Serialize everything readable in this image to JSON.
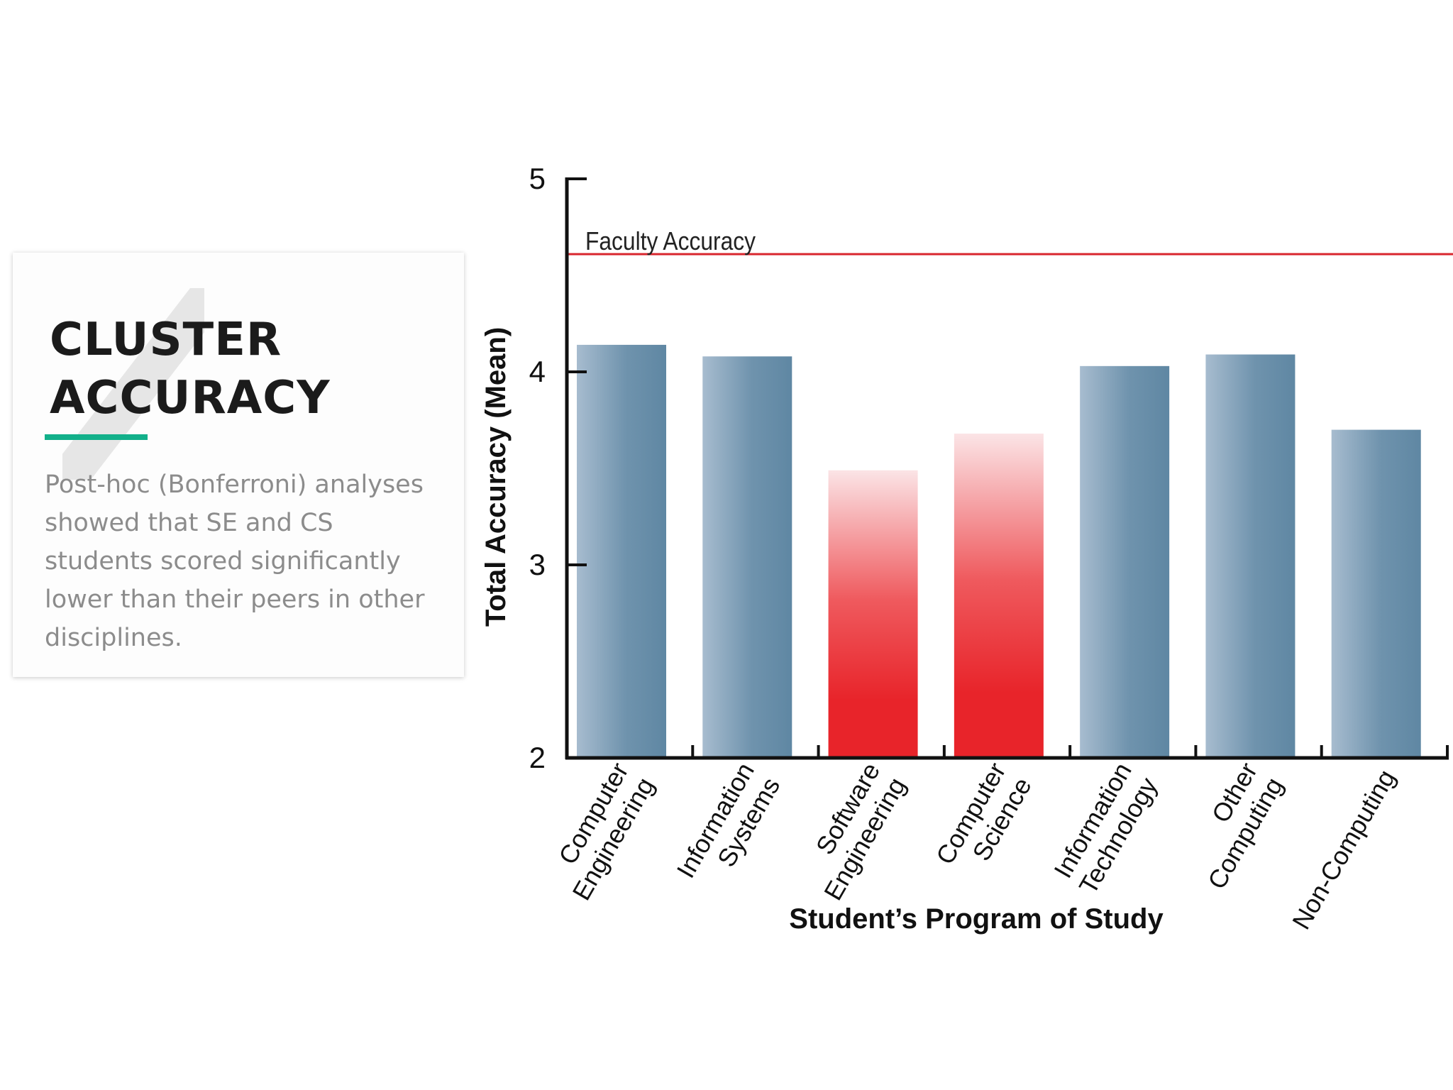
{
  "card": {
    "title_line1": "CLUSTER",
    "title_line2": "ACCURACY",
    "body": "Post-hoc (Bonferroni) analyses showed that SE and CS students scored significantly lower than their peers in other disciplines.",
    "accent_color": "#12b08a"
  },
  "chart_data": {
    "type": "bar",
    "title": "",
    "xlabel": "Student’s Program of Study",
    "ylabel": "Total Accuracy (Mean)",
    "ylim": [
      2,
      5
    ],
    "yticks": [
      2,
      3,
      4,
      5
    ],
    "grid": false,
    "categories": [
      [
        "Computer",
        "Engineering"
      ],
      [
        "Information",
        "Systems"
      ],
      [
        "Software",
        "Engineering"
      ],
      [
        "Computer",
        "Science"
      ],
      [
        "Information",
        "Technology"
      ],
      [
        "Other",
        "Computing"
      ],
      [
        "Non-Computing"
      ]
    ],
    "values": [
      4.14,
      4.08,
      3.49,
      3.68,
      4.03,
      4.09,
      3.7
    ],
    "highlighted": [
      false,
      false,
      true,
      true,
      false,
      false,
      false
    ],
    "reference_line": {
      "label": "Faculty Accuracy",
      "value": 4.61,
      "color": "#d9262e"
    },
    "colors": {
      "bar": "#6f93ad",
      "highlight": "#e8242a"
    }
  }
}
